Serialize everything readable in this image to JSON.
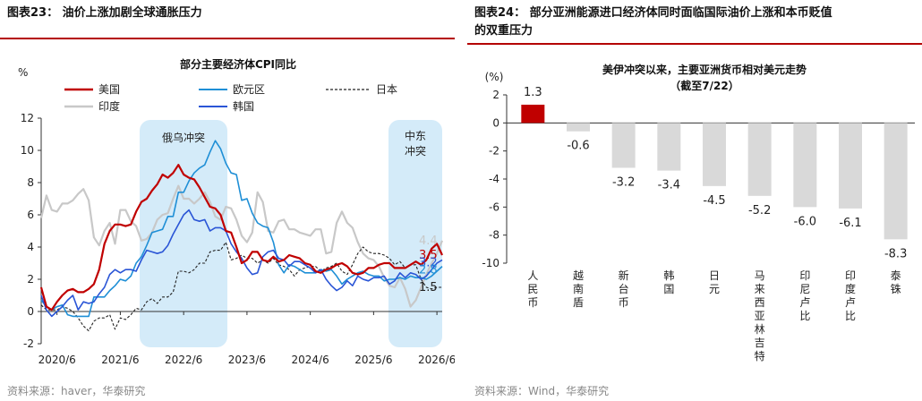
{
  "left": {
    "figure_title": "图表23：  油价上涨加剧全球通胀压力",
    "source": "资料来源：haver，华泰研究",
    "annotations": {
      "box1": "俄乌冲突",
      "box2_line1": "中东",
      "box2_line2": "冲突"
    },
    "end_labels": [
      "4.4",
      "3.5",
      "3.2",
      "2.8",
      "1.5"
    ],
    "colors": {
      "us": "#c00000",
      "eu": "#1f8fd6",
      "jp": "#222222",
      "in": "#c8c8c8",
      "kr": "#2a55d6",
      "box": "#d4ebf9"
    }
  },
  "right": {
    "figure_title_line1": "图表24：  部分亚洲能源进口经济体同时面临国际油价上涨和本币贬值",
    "figure_title_line2": "的双重压力",
    "source": "资料来源：Wind，华泰研究",
    "colors": {
      "highlight": "#c00000",
      "bar": "#d9d9d9"
    }
  },
  "chart_data": [
    {
      "type": "line",
      "title": "部分主要经济体CPI同比",
      "ylabel": "%",
      "ylim": [
        -2,
        12
      ],
      "yticks": [
        "-2",
        "0",
        "2",
        "4",
        "6",
        "8",
        "10",
        "12"
      ],
      "xticks": [
        "2020/6",
        "2021/6",
        "2022/6",
        "2023/6",
        "2024/6",
        "2025/6",
        "2026/6"
      ],
      "x_start": "2020/3",
      "x_end": "2026/6",
      "legend_position": "top",
      "series": [
        {
          "name": "美国",
          "values": [
            1.5,
            0.3,
            0.1,
            0.6,
            1.0,
            1.3,
            1.4,
            1.2,
            1.2,
            1.4,
            1.7,
            2.6,
            4.2,
            5.0,
            5.4,
            5.4,
            5.3,
            5.4,
            6.2,
            6.8,
            7.0,
            7.5,
            7.9,
            8.5,
            8.3,
            8.6,
            9.1,
            8.5,
            8.3,
            8.2,
            7.7,
            7.1,
            6.5,
            6.4,
            6.0,
            5.0,
            4.9,
            4.0,
            3.0,
            3.2,
            3.7,
            3.7,
            3.2,
            3.1,
            3.4,
            3.1,
            3.2,
            3.5,
            3.4,
            3.3,
            3.0,
            2.9,
            2.5,
            2.4,
            2.6,
            2.7,
            2.9,
            3.0,
            2.8,
            2.4,
            2.3,
            2.4,
            2.7,
            2.7,
            2.9,
            3.0,
            3.0,
            2.7,
            2.7,
            2.7,
            2.9,
            3.1,
            2.9,
            3.2,
            3.9,
            4.2,
            3.5
          ]
        },
        {
          "name": "欧元区",
          "values": [
            0.7,
            0.3,
            0.1,
            0.3,
            0.4,
            -0.2,
            -0.3,
            -0.3,
            -0.3,
            -0.3,
            0.9,
            0.9,
            0.9,
            1.3,
            1.6,
            2.0,
            1.9,
            2.2,
            3.0,
            3.4,
            4.1,
            4.9,
            5.0,
            5.1,
            5.9,
            5.9,
            7.4,
            7.4,
            8.1,
            8.6,
            8.9,
            9.1,
            9.9,
            10.6,
            10.1,
            9.2,
            8.6,
            8.5,
            6.9,
            7.0,
            6.1,
            5.5,
            5.3,
            5.2,
            4.3,
            2.9,
            2.4,
            2.9,
            2.8,
            2.6,
            2.4,
            2.4,
            2.4,
            2.6,
            2.5,
            2.6,
            2.2,
            1.7,
            2.0,
            2.2,
            2.4,
            2.5,
            2.3,
            2.2,
            2.2,
            1.9,
            2.0,
            2.0,
            2.1,
            2.0,
            2.2,
            2.1,
            2.1,
            2.0,
            2.2,
            2.5,
            2.8
          ]
        },
        {
          "name": "日本",
          "values": [
            0.4,
            0.1,
            0.1,
            0.1,
            0.3,
            0.2,
            0.0,
            -0.4,
            -0.9,
            -1.2,
            -0.6,
            -0.4,
            -0.4,
            -0.2,
            -1.1,
            -0.4,
            -0.5,
            -0.2,
            0.2,
            0.1,
            0.6,
            0.8,
            0.5,
            0.9,
            0.9,
            1.2,
            2.5,
            2.5,
            2.4,
            2.6,
            3.0,
            3.0,
            3.7,
            3.8,
            3.8,
            4.3,
            3.2,
            3.3,
            3.5,
            3.3,
            3.3,
            3.0,
            3.2,
            3.0,
            3.3,
            2.9,
            2.8,
            2.6,
            2.2,
            2.6,
            2.7,
            2.8,
            2.8,
            2.5,
            2.7,
            2.8,
            3.0,
            2.5,
            2.3,
            2.9,
            3.6,
            4.0,
            3.7,
            3.6,
            3.6,
            3.5,
            3.3,
            2.9,
            3.1,
            2.7,
            2.9,
            2.9,
            2.0,
            1.5,
            1.4,
            1.5,
            1.5
          ]
        },
        {
          "name": "印度",
          "values": [
            5.8,
            7.2,
            6.3,
            6.2,
            6.7,
            6.7,
            6.9,
            7.3,
            7.6,
            6.9,
            4.6,
            4.1,
            5.0,
            5.5,
            4.2,
            6.3,
            6.3,
            5.6,
            5.3,
            4.4,
            4.5,
            4.9,
            5.7,
            6.0,
            6.1,
            7.0,
            7.8,
            7.0,
            7.0,
            6.7,
            7.0,
            7.4,
            6.8,
            5.9,
            5.7,
            6.5,
            6.4,
            5.7,
            4.7,
            4.3,
            4.9,
            7.4,
            6.8,
            5.0,
            4.9,
            5.6,
            5.7,
            5.1,
            5.1,
            4.9,
            4.8,
            4.7,
            5.1,
            5.1,
            3.6,
            3.7,
            5.5,
            6.2,
            5.5,
            5.2,
            4.3,
            3.6,
            3.3,
            3.2,
            2.8,
            2.1,
            1.6,
            1.5,
            2.1,
            1.4,
            0.3,
            0.7,
            1.5,
            2.3,
            3.0,
            3.6,
            4.4
          ]
        },
        {
          "name": "韩国",
          "values": [
            1.0,
            0.1,
            -0.3,
            0.0,
            0.3,
            0.7,
            1.0,
            0.1,
            0.6,
            0.5,
            0.6,
            1.1,
            1.5,
            2.3,
            2.6,
            2.4,
            2.6,
            2.6,
            2.5,
            3.2,
            3.8,
            3.7,
            3.6,
            3.7,
            4.1,
            4.8,
            5.4,
            6.0,
            6.3,
            5.7,
            5.6,
            5.7,
            5.0,
            5.2,
            5.2,
            5.0,
            4.2,
            3.7,
            3.3,
            2.7,
            2.3,
            2.4,
            3.4,
            3.7,
            3.8,
            3.3,
            3.2,
            2.8,
            3.1,
            3.1,
            2.9,
            2.7,
            2.4,
            2.6,
            2.0,
            1.6,
            1.3,
            1.5,
            1.9,
            1.6,
            2.2,
            2.0,
            1.9,
            2.1,
            2.1,
            2.2,
            1.7,
            1.9,
            2.4,
            2.1,
            2.4,
            2.3,
            2.0,
            2.2,
            2.6,
            3.0,
            3.2
          ]
        }
      ]
    },
    {
      "type": "bar",
      "title": "美伊冲突以来，主要亚洲货币相对美元走势",
      "subtitle": "（截至7/22）",
      "ylabel": "(%)",
      "ylim": [
        -10,
        2
      ],
      "yticks": [
        "2",
        "0",
        "-2",
        "-4",
        "-6",
        "-8",
        "-10"
      ],
      "categories": [
        "人民币",
        "越南盾",
        "新台币",
        "韩国",
        "日元",
        "马来西亚林吉特",
        "印尼卢比",
        "印度卢比",
        "泰铢"
      ],
      "values": [
        1.3,
        -0.6,
        -3.2,
        -3.4,
        -4.5,
        -5.2,
        -6.0,
        -6.1,
        -8.3
      ],
      "value_labels": [
        "1.3",
        "-0.6",
        "-3.2",
        "-3.4",
        "-4.5",
        "-5.2",
        "-6.0",
        "-6.1",
        "-8.3"
      ]
    }
  ]
}
